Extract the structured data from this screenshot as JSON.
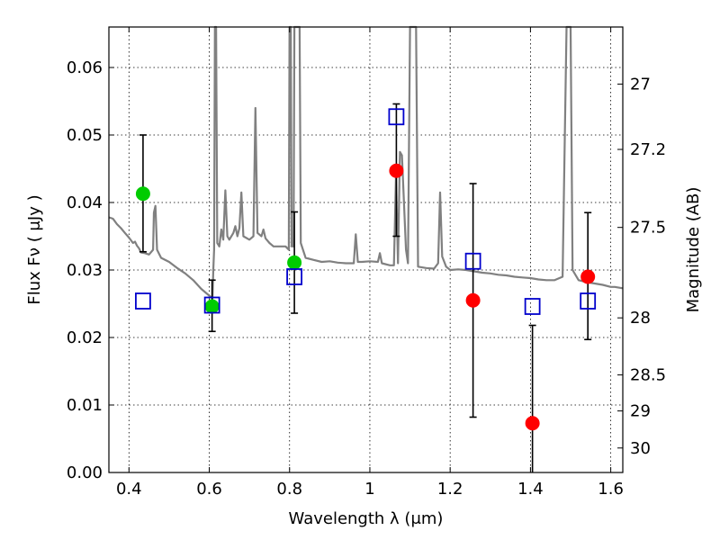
{
  "chart_data": {
    "type": "scatter",
    "xlabel": "Wavelength  λ (μm)",
    "ylabel": "Flux  Fν  ( μJy )",
    "y2label": "Magnitude (AB)",
    "xlim": [
      0.35,
      1.63
    ],
    "ylim": [
      0.0,
      0.066
    ],
    "grid": true,
    "x_ticks": [
      {
        "value": 0.4,
        "label": "0.4"
      },
      {
        "value": 0.6,
        "label": "0.6"
      },
      {
        "value": 0.8,
        "label": "0.8"
      },
      {
        "value": 1.0,
        "label": "1"
      },
      {
        "value": 1.2,
        "label": "1.2"
      },
      {
        "value": 1.4,
        "label": "1.4"
      },
      {
        "value": 1.6,
        "label": "1.6"
      }
    ],
    "y_ticks": [
      {
        "value": 0.0,
        "label": "0.00"
      },
      {
        "value": 0.01,
        "label": "0.01"
      },
      {
        "value": 0.02,
        "label": "0.02"
      },
      {
        "value": 0.03,
        "label": "0.03"
      },
      {
        "value": 0.04,
        "label": "0.04"
      },
      {
        "value": 0.05,
        "label": "0.05"
      },
      {
        "value": 0.06,
        "label": "0.06"
      }
    ],
    "mag_ticks": [
      {
        "value": 27.0,
        "label": "27"
      },
      {
        "value": 27.2,
        "label": "27.2"
      },
      {
        "value": 27.5,
        "label": "27.5"
      },
      {
        "value": 28.0,
        "label": "28"
      },
      {
        "value": 28.5,
        "label": "28.5"
      },
      {
        "value": 29.0,
        "label": "29"
      },
      {
        "value": 30.0,
        "label": "30"
      }
    ],
    "series": [
      {
        "kind": "model_spectrum",
        "color": "#808080",
        "points": [
          [
            0.35,
            0.0378
          ],
          [
            0.36,
            0.0376
          ],
          [
            0.37,
            0.0368
          ],
          [
            0.38,
            0.0362
          ],
          [
            0.39,
            0.0355
          ],
          [
            0.4,
            0.0348
          ],
          [
            0.41,
            0.034
          ],
          [
            0.415,
            0.0342
          ],
          [
            0.42,
            0.0336
          ],
          [
            0.425,
            0.0332
          ],
          [
            0.43,
            0.0326
          ],
          [
            0.44,
            0.0325
          ],
          [
            0.45,
            0.0323
          ],
          [
            0.46,
            0.033
          ],
          [
            0.462,
            0.0385
          ],
          [
            0.466,
            0.0395
          ],
          [
            0.47,
            0.033
          ],
          [
            0.48,
            0.0318
          ],
          [
            0.5,
            0.0312
          ],
          [
            0.52,
            0.0303
          ],
          [
            0.54,
            0.0295
          ],
          [
            0.56,
            0.0285
          ],
          [
            0.58,
            0.0272
          ],
          [
            0.6,
            0.0262
          ],
          [
            0.608,
            0.0258
          ],
          [
            0.61,
            0.03
          ],
          [
            0.612,
            0.033
          ],
          [
            0.614,
            0.066
          ],
          [
            0.617,
            0.066
          ],
          [
            0.62,
            0.034
          ],
          [
            0.625,
            0.0335
          ],
          [
            0.63,
            0.036
          ],
          [
            0.635,
            0.0345
          ],
          [
            0.64,
            0.0418
          ],
          [
            0.645,
            0.035
          ],
          [
            0.65,
            0.0345
          ],
          [
            0.66,
            0.0355
          ],
          [
            0.665,
            0.0365
          ],
          [
            0.67,
            0.035
          ],
          [
            0.675,
            0.0362
          ],
          [
            0.68,
            0.0415
          ],
          [
            0.685,
            0.035
          ],
          [
            0.7,
            0.0345
          ],
          [
            0.71,
            0.035
          ],
          [
            0.715,
            0.054
          ],
          [
            0.72,
            0.0355
          ],
          [
            0.73,
            0.035
          ],
          [
            0.735,
            0.036
          ],
          [
            0.74,
            0.0347
          ],
          [
            0.75,
            0.034
          ],
          [
            0.76,
            0.0335
          ],
          [
            0.78,
            0.0335
          ],
          [
            0.79,
            0.0335
          ],
          [
            0.798,
            0.033
          ],
          [
            0.8,
            0.066
          ],
          [
            0.803,
            0.066
          ],
          [
            0.805,
            0.0335
          ],
          [
            0.81,
            0.0335
          ],
          [
            0.812,
            0.066
          ],
          [
            0.82,
            0.066
          ],
          [
            0.825,
            0.066
          ],
          [
            0.828,
            0.034
          ],
          [
            0.84,
            0.0318
          ],
          [
            0.86,
            0.0315
          ],
          [
            0.88,
            0.0312
          ],
          [
            0.9,
            0.0313
          ],
          [
            0.92,
            0.0311
          ],
          [
            0.94,
            0.031
          ],
          [
            0.96,
            0.031
          ],
          [
            0.965,
            0.0353
          ],
          [
            0.97,
            0.0312
          ],
          [
            0.98,
            0.0312
          ],
          [
            1.0,
            0.0313
          ],
          [
            1.02,
            0.0312
          ],
          [
            1.025,
            0.0325
          ],
          [
            1.03,
            0.031
          ],
          [
            1.05,
            0.0307
          ],
          [
            1.06,
            0.0307
          ],
          [
            1.065,
            0.044
          ],
          [
            1.07,
            0.031
          ],
          [
            1.075,
            0.0475
          ],
          [
            1.08,
            0.047
          ],
          [
            1.09,
            0.033
          ],
          [
            1.095,
            0.031
          ],
          [
            1.1,
            0.066
          ],
          [
            1.115,
            0.066
          ],
          [
            1.12,
            0.0305
          ],
          [
            1.14,
            0.0303
          ],
          [
            1.16,
            0.0302
          ],
          [
            1.17,
            0.031
          ],
          [
            1.175,
            0.0415
          ],
          [
            1.18,
            0.032
          ],
          [
            1.19,
            0.0305
          ],
          [
            1.2,
            0.03
          ],
          [
            1.22,
            0.0301
          ],
          [
            1.24,
            0.03
          ],
          [
            1.26,
            0.0298
          ],
          [
            1.28,
            0.0296
          ],
          [
            1.3,
            0.0295
          ],
          [
            1.32,
            0.0293
          ],
          [
            1.34,
            0.0292
          ],
          [
            1.36,
            0.029
          ],
          [
            1.38,
            0.0289
          ],
          [
            1.4,
            0.0288
          ],
          [
            1.42,
            0.0286
          ],
          [
            1.44,
            0.0285
          ],
          [
            1.46,
            0.0285
          ],
          [
            1.48,
            0.029
          ],
          [
            1.49,
            0.066
          ],
          [
            1.5,
            0.066
          ],
          [
            1.505,
            0.03
          ],
          [
            1.52,
            0.0285
          ],
          [
            1.54,
            0.0282
          ],
          [
            1.56,
            0.028
          ],
          [
            1.58,
            0.0278
          ],
          [
            1.6,
            0.0275
          ],
          [
            1.61,
            0.0275
          ],
          [
            1.63,
            0.0273
          ]
        ]
      },
      {
        "kind": "observed_detections",
        "marker": "circle",
        "color": "#00cc00",
        "points": [
          {
            "x": 0.435,
            "y": 0.0413,
            "err": [
              0.0327,
              0.05
            ]
          },
          {
            "x": 0.607,
            "y": 0.0246,
            "err": [
              0.0209,
              0.0285
            ]
          },
          {
            "x": 0.812,
            "y": 0.0311,
            "err": [
              0.0236,
              0.0386
            ]
          }
        ]
      },
      {
        "kind": "observed_detections",
        "marker": "circle",
        "color": "#ff0000",
        "points": [
          {
            "x": 1.066,
            "y": 0.0447,
            "err": [
              0.035,
              0.0546
            ]
          },
          {
            "x": 1.257,
            "y": 0.0255,
            "err": [
              0.0082,
              0.0428
            ]
          },
          {
            "x": 1.405,
            "y": 0.0073,
            "err": [
              0.0,
              0.0218
            ]
          },
          {
            "x": 1.543,
            "y": 0.029,
            "err": [
              0.0197,
              0.0385
            ]
          }
        ]
      },
      {
        "kind": "model_photometry",
        "marker": "open-square",
        "color": "#0000cc",
        "points": [
          {
            "x": 0.435,
            "y": 0.0254
          },
          {
            "x": 0.607,
            "y": 0.0248
          },
          {
            "x": 0.812,
            "y": 0.029
          },
          {
            "x": 1.066,
            "y": 0.0527
          },
          {
            "x": 1.257,
            "y": 0.0313
          },
          {
            "x": 1.405,
            "y": 0.0246
          },
          {
            "x": 1.543,
            "y": 0.0254
          }
        ]
      }
    ]
  }
}
